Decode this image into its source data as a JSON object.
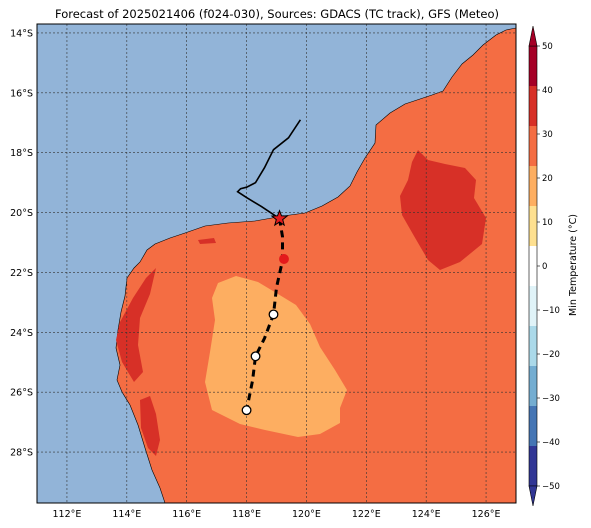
{
  "title": "Forecast of 2025021406 (f024-030), Sources: GDACS (TC track), GFS (Meteo)",
  "map": {
    "lon_range": [
      111,
      127
    ],
    "lat_range": [
      -29.7,
      -13.7
    ],
    "lon_ticks": [
      "112°E",
      "114°E",
      "116°E",
      "118°E",
      "120°E",
      "122°E",
      "124°E",
      "126°E"
    ],
    "lat_ticks": [
      "14°S",
      "16°S",
      "18°S",
      "20°S",
      "22°S",
      "24°S",
      "26°S",
      "28°S"
    ],
    "ocean_color": "#92b4d8",
    "land_color": "#f46d43",
    "warm_color": "#d73027",
    "cool_color": "#fdae61",
    "past_track": [
      [
        119.8,
        -16.9
      ],
      [
        119.4,
        -17.5
      ],
      [
        118.9,
        -17.9
      ],
      [
        118.6,
        -18.5
      ],
      [
        118.3,
        -19.0
      ],
      [
        118.0,
        -19.15
      ],
      [
        117.8,
        -19.2
      ],
      [
        117.7,
        -19.3
      ],
      [
        118.0,
        -19.5
      ],
      [
        118.5,
        -19.8
      ],
      [
        119.1,
        -20.2
      ]
    ],
    "forecast_track": [
      [
        119.1,
        -20.2
      ],
      [
        119.2,
        -20.8
      ],
      [
        119.2,
        -21.6
      ],
      [
        119.0,
        -22.5
      ],
      [
        118.9,
        -23.4
      ],
      [
        118.6,
        -24.2
      ],
      [
        118.3,
        -24.8
      ],
      [
        118.2,
        -25.6
      ],
      [
        118.0,
        -26.6
      ]
    ],
    "current_position": [
      119.1,
      -20.2
    ],
    "forecast_points": [
      {
        "lon": 119.25,
        "lat": -21.55,
        "filled": true
      },
      {
        "lon": 118.9,
        "lat": -23.4,
        "filled": false
      },
      {
        "lon": 118.3,
        "lat": -24.8,
        "filled": false
      },
      {
        "lon": 118.0,
        "lat": -26.6,
        "filled": false
      }
    ]
  },
  "colorbar": {
    "label": "Min Temperature (°C)",
    "ticks": [
      "50",
      "40",
      "30",
      "20",
      "10",
      "0",
      "−10",
      "−20",
      "−30",
      "−40",
      "−50"
    ],
    "colors": [
      "#a50026",
      "#d73027",
      "#f46d43",
      "#fdae61",
      "#fee090",
      "#ffffff",
      "#e0f3f8",
      "#abd9e9",
      "#74add1",
      "#4575b4",
      "#313695"
    ]
  }
}
